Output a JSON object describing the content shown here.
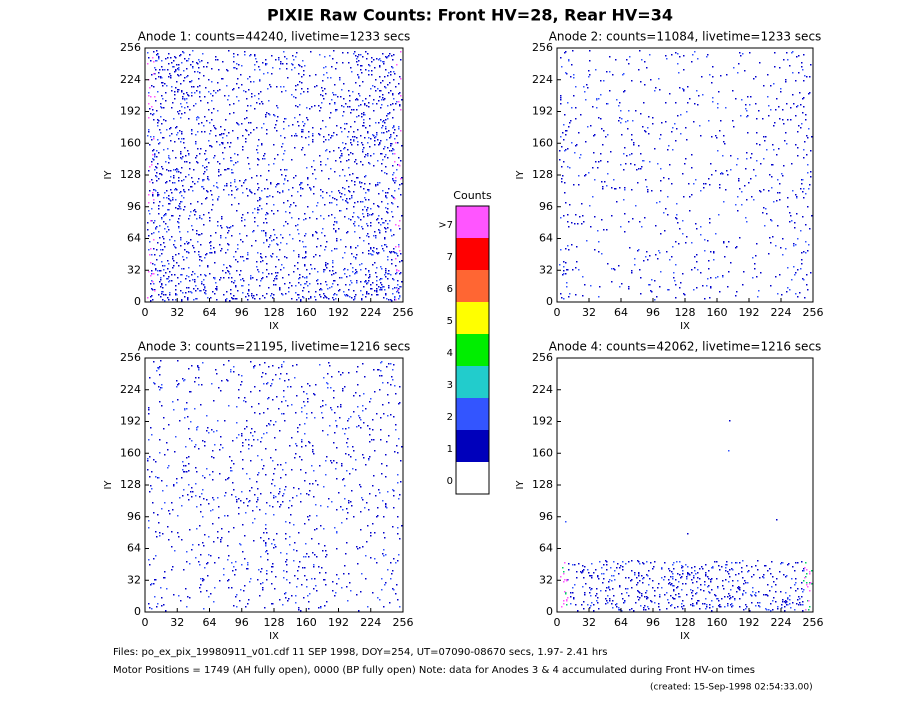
{
  "title": "PIXIE Raw Counts:  Front HV=28, Rear HV=34",
  "chart_data": [
    {
      "type": "heatmap",
      "title": "Anode 1: counts=44240, livetime=1233 secs",
      "x_label": "IX",
      "y_label": "IY",
      "xlim": [
        0,
        256
      ],
      "ylim": [
        0,
        256
      ],
      "xticks": [
        0,
        32,
        64,
        96,
        128,
        160,
        192,
        224,
        256
      ],
      "yticks": [
        0,
        32,
        64,
        96,
        128,
        160,
        192,
        224,
        256
      ]
    },
    {
      "type": "heatmap",
      "title": "Anode 2: counts=11084, livetime=1233 secs",
      "x_label": "IX",
      "y_label": "IY",
      "xlim": [
        0,
        256
      ],
      "ylim": [
        0,
        256
      ],
      "xticks": [
        0,
        32,
        64,
        96,
        128,
        160,
        192,
        224,
        256
      ],
      "yticks": [
        0,
        32,
        64,
        96,
        128,
        160,
        192,
        224,
        256
      ]
    },
    {
      "type": "heatmap",
      "title": "Anode 3: counts=21195, livetime=1216 secs",
      "x_label": "IX",
      "y_label": "IY",
      "xlim": [
        0,
        256
      ],
      "ylim": [
        0,
        256
      ],
      "xticks": [
        0,
        32,
        64,
        96,
        128,
        160,
        192,
        224,
        256
      ],
      "yticks": [
        0,
        32,
        64,
        96,
        128,
        160,
        192,
        224,
        256
      ]
    },
    {
      "type": "heatmap",
      "title": "Anode 4: counts=42062, livetime=1216 secs",
      "x_label": "IX",
      "y_label": "IY",
      "xlim": [
        0,
        256
      ],
      "ylim": [
        0,
        256
      ],
      "xticks": [
        0,
        32,
        64,
        96,
        128,
        160,
        192,
        224,
        256
      ],
      "yticks": [
        0,
        32,
        64,
        96,
        128,
        160,
        192,
        224,
        256
      ]
    }
  ],
  "colorbar": {
    "title": "Counts",
    "levels": [
      {
        "label": ">7",
        "color": "#ff55ff"
      },
      {
        "label": "7",
        "color": "#ff0000"
      },
      {
        "label": "6",
        "color": "#ff6633"
      },
      {
        "label": "5",
        "color": "#ffff00"
      },
      {
        "label": "4",
        "color": "#00ee00"
      },
      {
        "label": "3",
        "color": "#22cccc"
      },
      {
        "label": "2",
        "color": "#3355ff"
      },
      {
        "label": "1",
        "color": "#0000bb"
      },
      {
        "label": "0",
        "color": "#ffffff"
      }
    ]
  },
  "footer": {
    "files": "Files: po_ex_pix_19980911_v01.cdf    11 SEP 1998, DOY=254, UT=07090-08670 secs,  1.97- 2.41 hrs",
    "motor": "Motor Positions = 1749 (AH fully open), 0000 (BP fully open)    Note: data for Anodes 3 & 4 accumulated during Front HV-on times",
    "created": "(created: 15-Sep-1998 02:54:33.00)"
  }
}
